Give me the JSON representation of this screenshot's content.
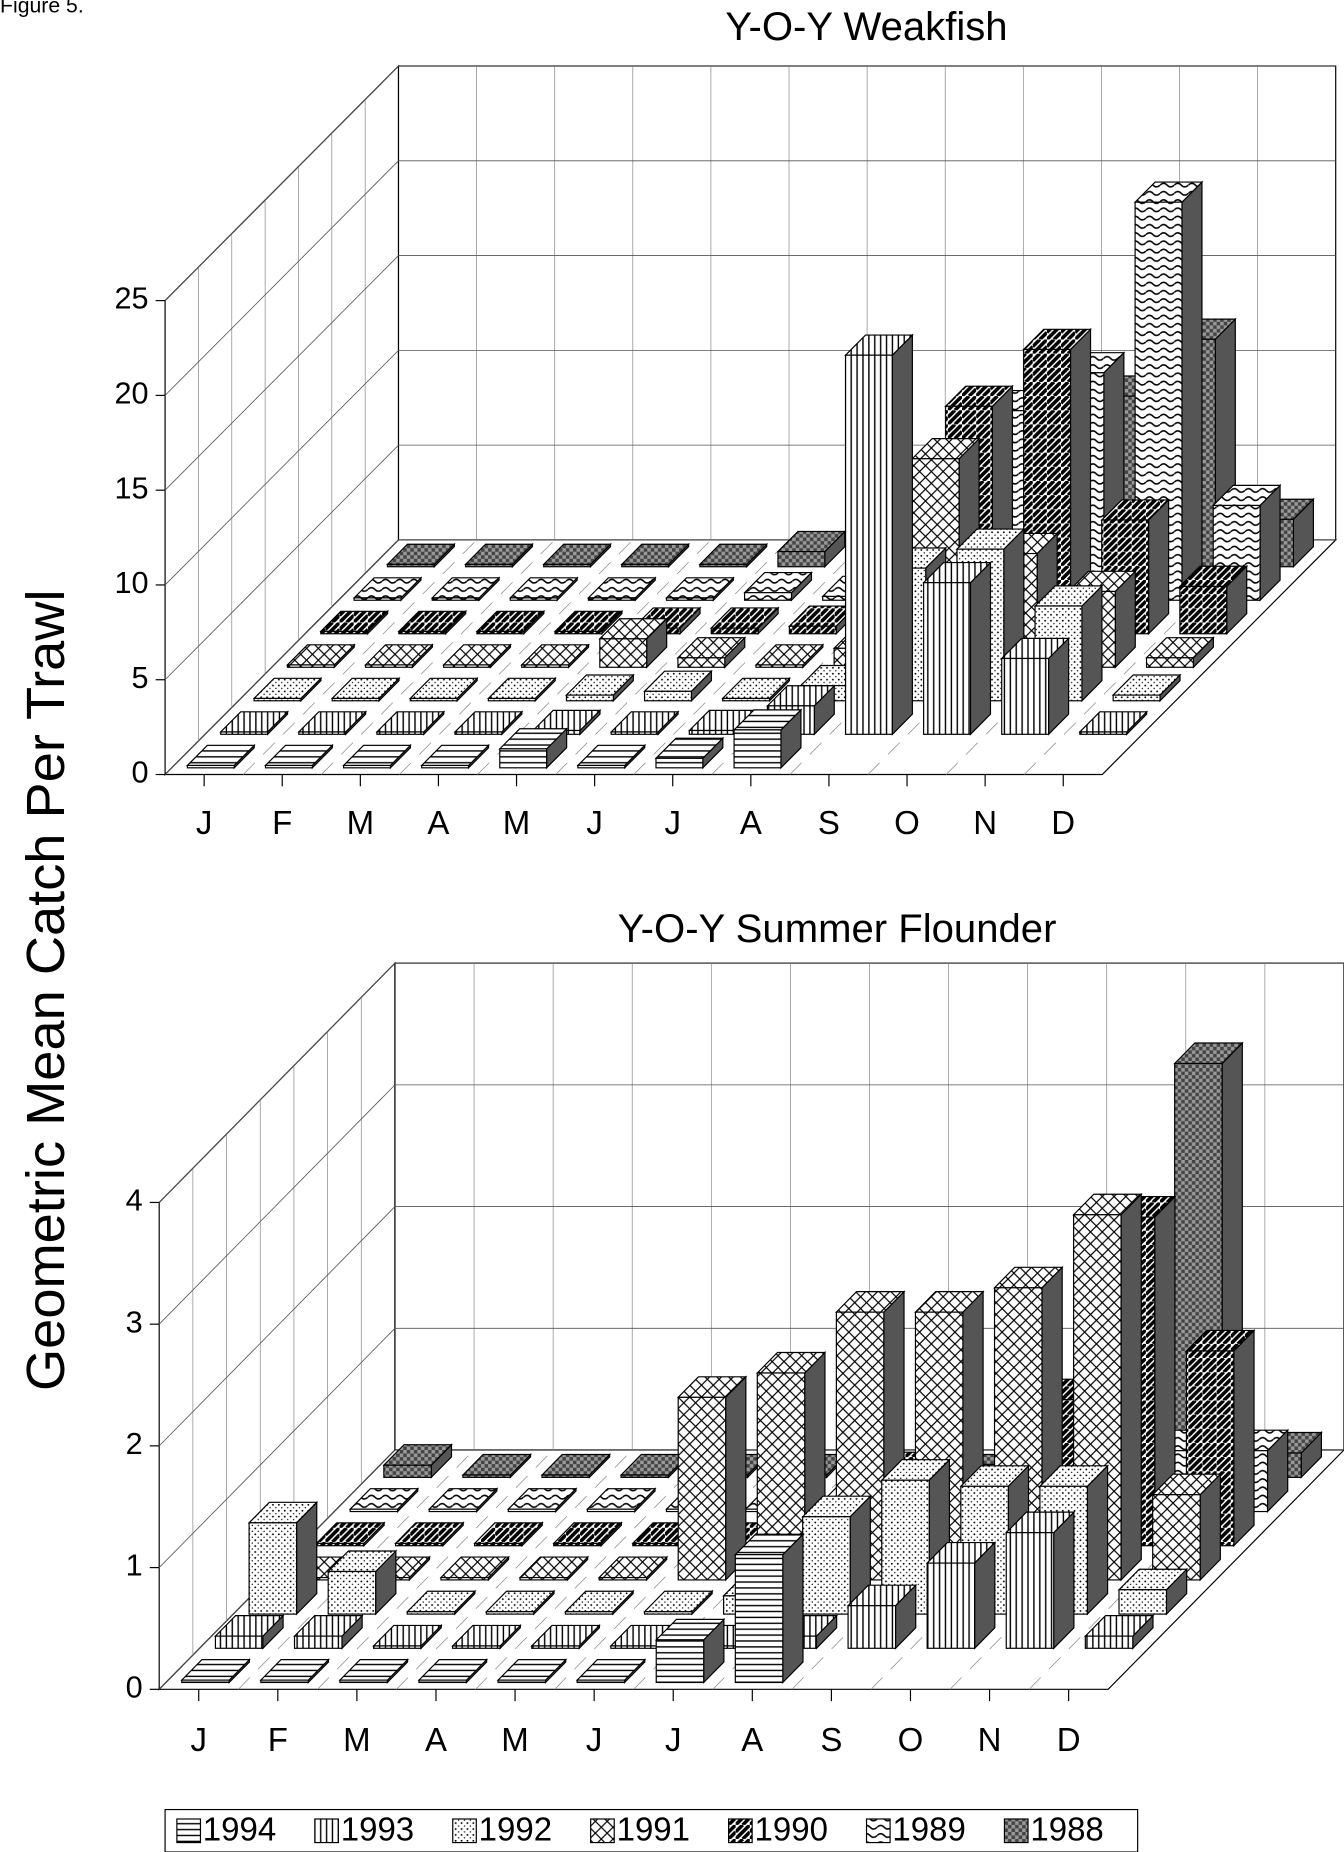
{
  "figure_label": "Figure 5.",
  "ylabel": "Geometric Mean Catch Per Trawl",
  "chart_data": [
    {
      "type": "bar3d",
      "title": "Y-O-Y Weakfish",
      "categories": [
        "J",
        "F",
        "M",
        "A",
        "M",
        "J",
        "J",
        "A",
        "S",
        "O",
        "N",
        "D"
      ],
      "ylim": [
        0,
        25
      ],
      "yticks": [
        0,
        5,
        10,
        15,
        20,
        25
      ],
      "grid": true,
      "series": [
        {
          "pattern": "hlines",
          "values": [
            0,
            0,
            0,
            0,
            1,
            0,
            0.5,
            2,
            null,
            null,
            null,
            null
          ]
        },
        {
          "pattern": "vlines",
          "values": [
            0,
            0,
            0,
            0,
            0.2,
            0,
            0.2,
            1.5,
            20,
            8,
            4,
            0
          ]
        },
        {
          "pattern": "dots",
          "values": [
            0,
            0,
            0,
            0,
            0.3,
            0.5,
            0,
            0.8,
            7,
            8,
            5,
            0.3
          ]
        },
        {
          "pattern": "cross",
          "values": [
            0,
            0,
            0,
            0,
            1.5,
            0.5,
            0,
            1,
            11,
            6,
            4,
            0.5
          ]
        },
        {
          "pattern": "bricks",
          "values": [
            0,
            0,
            0,
            0,
            0.3,
            0.3,
            0.4,
            0.8,
            12,
            15,
            6,
            2.5
          ]
        },
        {
          "pattern": "waves",
          "values": [
            0,
            0,
            0,
            0,
            0,
            0.4,
            0.2,
            0.3,
            10,
            12,
            21,
            5
          ]
        },
        {
          "pattern": "checker",
          "values": [
            0,
            0,
            0,
            0,
            0,
            0.8,
            0,
            0,
            0,
            9,
            12,
            2.5
          ]
        }
      ]
    },
    {
      "type": "bar3d",
      "title": "Y-O-Y Summer Flounder",
      "categories": [
        "J",
        "F",
        "M",
        "A",
        "M",
        "J",
        "J",
        "A",
        "S",
        "O",
        "N",
        "D"
      ],
      "ylim": [
        0,
        4
      ],
      "yticks": [
        0,
        1,
        2,
        3,
        4
      ],
      "grid": true,
      "series": [
        {
          "name": "1994",
          "pattern": "hlines",
          "values": [
            0,
            0,
            0,
            0,
            0,
            0,
            0.35,
            1.05,
            null,
            null,
            null,
            null
          ]
        },
        {
          "name": "1993",
          "pattern": "vlines",
          "values": [
            0.1,
            0.1,
            0,
            0,
            0,
            0,
            0,
            0.1,
            0.35,
            0.7,
            0.95,
            0.1
          ]
        },
        {
          "name": "1992",
          "pattern": "dots",
          "values": [
            0.75,
            0.35,
            0,
            0,
            0,
            0,
            0.15,
            0.8,
            1.1,
            1.05,
            1.05,
            0.2
          ]
        },
        {
          "name": "1991",
          "pattern": "cross",
          "values": [
            0,
            0,
            0,
            0,
            0,
            1.5,
            1.7,
            2.2,
            2.2,
            2.4,
            3.0,
            0.7
          ]
        },
        {
          "name": "1990",
          "pattern": "bricks",
          "values": [
            0,
            0,
            0,
            0,
            0,
            0,
            0,
            0.6,
            0.5,
            1.2,
            2.7,
            1.6
          ]
        },
        {
          "name": "1989",
          "pattern": "waves",
          "values": [
            0,
            0,
            0,
            0,
            0,
            0,
            0.1,
            0.1,
            0.2,
            0.5,
            0.5,
            0.5
          ]
        },
        {
          "name": "1988",
          "pattern": "checker",
          "values": [
            0.1,
            0,
            0,
            0,
            0,
            0,
            0,
            0,
            0,
            0,
            3.4,
            0.2
          ]
        }
      ]
    }
  ]
}
